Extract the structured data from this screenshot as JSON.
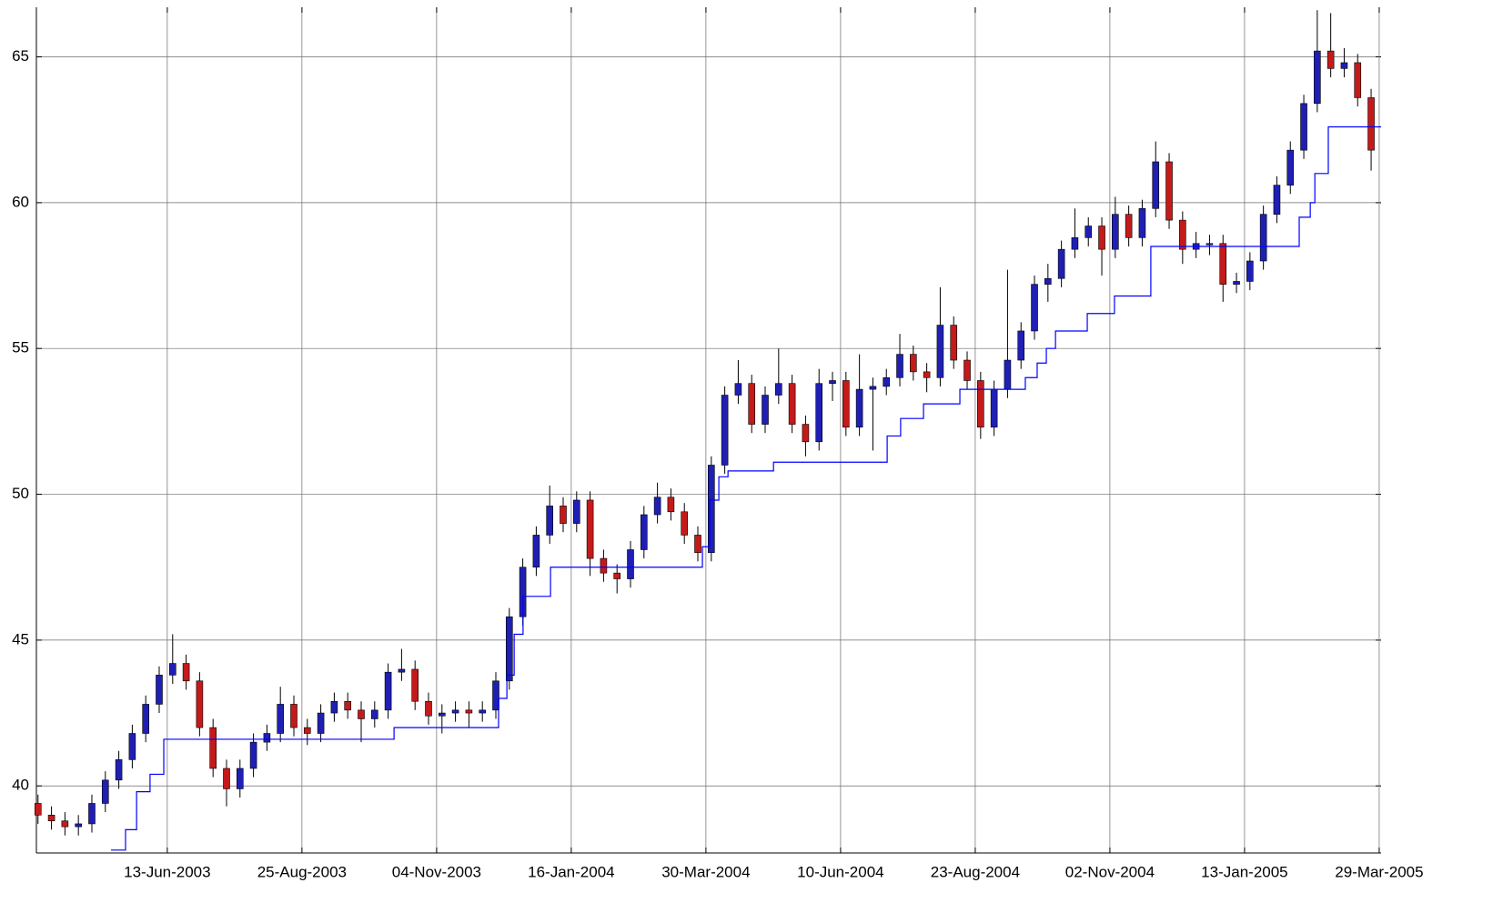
{
  "chart_data": {
    "type": "candlestick",
    "xlim": [
      1.4,
      500.7
    ],
    "ylim": [
      37.7,
      66.7
    ],
    "xticks": [
      {
        "value": 50,
        "label": "13-Jun-2003"
      },
      {
        "value": 100,
        "label": "25-Aug-2003"
      },
      {
        "value": 150,
        "label": "04-Nov-2003"
      },
      {
        "value": 200,
        "label": "16-Jan-2004"
      },
      {
        "value": 250,
        "label": "30-Mar-2004"
      },
      {
        "value": 300,
        "label": "10-Jun-2004"
      },
      {
        "value": 350,
        "label": "23-Aug-2004"
      },
      {
        "value": 400,
        "label": "02-Nov-2004"
      },
      {
        "value": 450,
        "label": "13-Jan-2005"
      },
      {
        "value": 500,
        "label": "29-Mar-2005"
      }
    ],
    "yticks": [
      40,
      45,
      50,
      55,
      60,
      65
    ],
    "grid": true,
    "up_color": "#1f1fb4",
    "down_color": "#c41a1a",
    "x": [
      2,
      7,
      12,
      17,
      22,
      27,
      32,
      37,
      42,
      47,
      52,
      57,
      62,
      67,
      72,
      77,
      82,
      87,
      92,
      97,
      102,
      107,
      112,
      117,
      122,
      127,
      132,
      137,
      142,
      147,
      152,
      157,
      162,
      167,
      172,
      177,
      182,
      187,
      192,
      197,
      202,
      207,
      212,
      217,
      222,
      227,
      232,
      237,
      242,
      247,
      252,
      257,
      262,
      267,
      272,
      277,
      282,
      287,
      292,
      297,
      302,
      307,
      312,
      317,
      322,
      327,
      332,
      337,
      342,
      347,
      352,
      357,
      362,
      367,
      372,
      377,
      382,
      387,
      392,
      397,
      402,
      407,
      412,
      417,
      422,
      427,
      432,
      437,
      442,
      447,
      452,
      457,
      462,
      467,
      472,
      477,
      482,
      487,
      492,
      497
    ],
    "open": [
      39.4,
      39.0,
      38.8,
      38.6,
      38.7,
      39.4,
      40.2,
      40.9,
      41.8,
      42.8,
      43.8,
      44.2,
      43.6,
      42.0,
      40.6,
      39.9,
      40.6,
      41.5,
      41.8,
      42.8,
      42.0,
      41.8,
      42.5,
      42.9,
      42.6,
      42.3,
      42.6,
      43.9,
      44.0,
      42.9,
      42.4,
      42.5,
      42.6,
      42.5,
      42.6,
      43.6,
      45.8,
      47.5,
      48.6,
      49.6,
      49.0,
      49.8,
      47.8,
      47.3,
      47.1,
      48.1,
      49.3,
      49.9,
      49.4,
      48.6,
      48.0,
      51.0,
      53.4,
      53.8,
      52.4,
      53.4,
      53.8,
      52.4,
      51.8,
      53.8,
      53.9,
      52.3,
      53.6,
      53.7,
      54.0,
      54.8,
      54.2,
      54.0,
      55.8,
      54.6,
      53.9,
      52.3,
      53.6,
      54.6,
      55.6,
      57.2,
      57.4,
      58.4,
      58.8,
      59.2,
      58.4,
      59.6,
      58.8,
      59.8,
      61.4,
      59.4,
      58.4,
      58.6,
      58.6,
      57.2,
      57.3,
      58.0,
      59.6,
      60.6,
      61.8,
      63.4,
      65.2,
      64.6,
      64.8,
      63.6
    ],
    "high": [
      39.7,
      39.3,
      39.1,
      39.0,
      39.7,
      40.5,
      41.2,
      42.1,
      43.1,
      44.1,
      45.2,
      44.5,
      43.9,
      42.3,
      40.9,
      40.9,
      41.8,
      42.1,
      43.4,
      43.1,
      42.3,
      42.8,
      43.2,
      43.2,
      42.9,
      42.9,
      44.2,
      44.7,
      44.3,
      43.2,
      42.8,
      42.9,
      42.9,
      42.9,
      43.9,
      46.1,
      47.8,
      48.9,
      50.3,
      49.9,
      50.1,
      50.1,
      48.1,
      47.6,
      48.4,
      49.6,
      50.4,
      50.2,
      49.7,
      48.9,
      51.3,
      53.7,
      54.6,
      54.1,
      53.7,
      55.0,
      54.1,
      52.7,
      54.3,
      54.2,
      54.2,
      54.8,
      54.0,
      54.3,
      55.5,
      55.1,
      54.5,
      57.1,
      56.1,
      54.9,
      54.2,
      53.9,
      57.7,
      55.9,
      57.5,
      57.9,
      58.7,
      59.8,
      59.5,
      59.5,
      60.2,
      59.9,
      60.1,
      62.1,
      61.7,
      59.7,
      59.0,
      58.9,
      58.9,
      57.6,
      58.3,
      59.9,
      60.9,
      62.1,
      63.7,
      66.6,
      66.5,
      65.3,
      65.1,
      63.9
    ],
    "low": [
      38.7,
      38.5,
      38.3,
      38.3,
      38.4,
      39.1,
      39.9,
      40.6,
      41.5,
      42.5,
      43.5,
      43.3,
      41.7,
      40.3,
      39.3,
      39.6,
      40.3,
      41.2,
      41.5,
      41.7,
      41.4,
      41.5,
      42.2,
      42.3,
      41.5,
      42.0,
      42.3,
      43.6,
      42.6,
      42.1,
      41.8,
      42.2,
      42.0,
      42.2,
      42.3,
      43.3,
      45.5,
      47.2,
      48.3,
      48.7,
      48.7,
      47.2,
      47.0,
      46.6,
      46.8,
      47.8,
      49.0,
      49.1,
      48.3,
      47.7,
      47.7,
      50.7,
      53.1,
      52.1,
      52.1,
      53.1,
      52.1,
      51.3,
      51.5,
      53.2,
      52.0,
      52.0,
      51.5,
      53.4,
      53.7,
      53.9,
      53.5,
      53.7,
      54.3,
      53.6,
      51.9,
      52.0,
      53.3,
      54.3,
      55.3,
      56.6,
      57.1,
      58.1,
      58.5,
      57.5,
      58.1,
      58.5,
      58.5,
      59.5,
      59.1,
      57.9,
      58.1,
      58.2,
      56.6,
      56.9,
      57.0,
      57.7,
      59.3,
      60.3,
      61.5,
      63.1,
      64.3,
      64.3,
      63.3,
      61.1
    ],
    "close": [
      39.0,
      38.8,
      38.6,
      38.7,
      39.4,
      40.2,
      40.9,
      41.8,
      42.8,
      43.8,
      44.2,
      43.6,
      42.0,
      40.6,
      39.9,
      40.6,
      41.5,
      41.8,
      42.8,
      42.0,
      41.8,
      42.5,
      42.9,
      42.6,
      42.3,
      42.6,
      43.9,
      44.0,
      42.9,
      42.4,
      42.5,
      42.6,
      42.5,
      42.6,
      43.6,
      45.8,
      47.5,
      48.6,
      49.6,
      49.0,
      49.8,
      47.8,
      47.3,
      47.1,
      48.1,
      49.3,
      49.9,
      49.4,
      48.6,
      48.0,
      51.0,
      53.4,
      53.8,
      52.4,
      53.4,
      53.8,
      52.4,
      51.8,
      53.8,
      53.9,
      52.3,
      53.6,
      53.7,
      54.0,
      54.8,
      54.2,
      54.0,
      55.8,
      54.6,
      53.9,
      52.3,
      53.6,
      54.6,
      55.6,
      57.2,
      57.4,
      58.4,
      58.8,
      59.2,
      58.4,
      59.6,
      58.8,
      59.8,
      61.4,
      59.4,
      58.4,
      58.6,
      58.6,
      57.2,
      57.3,
      58.0,
      59.6,
      60.6,
      61.8,
      63.4,
      65.2,
      64.6,
      64.8,
      63.6,
      61.8
    ],
    "stop_line": {
      "color": "#0000ff",
      "x": [
        29.1,
        34.5,
        38.6,
        43.6,
        48.7,
        134.2,
        173.0,
        176.1,
        178.8,
        182.1,
        192.3,
        248.7,
        251.4,
        254.8,
        258.2,
        275.1,
        317.3,
        322.3,
        330.8,
        344.3,
        368.6,
        373.0,
        376.4,
        379.8,
        391.6,
        401.7,
        415.2,
        470.3,
        474.4,
        476.1,
        481.1,
        500.7
      ],
      "values": [
        37.8,
        38.5,
        39.8,
        40.4,
        41.6,
        42.0,
        43.0,
        43.8,
        45.2,
        46.5,
        47.5,
        48.2,
        49.8,
        50.6,
        50.8,
        51.1,
        52.0,
        52.6,
        53.1,
        53.6,
        54.0,
        54.5,
        55.0,
        55.6,
        56.2,
        56.8,
        58.5,
        59.5,
        60.0,
        61.0,
        62.6,
        62.6
      ]
    }
  }
}
